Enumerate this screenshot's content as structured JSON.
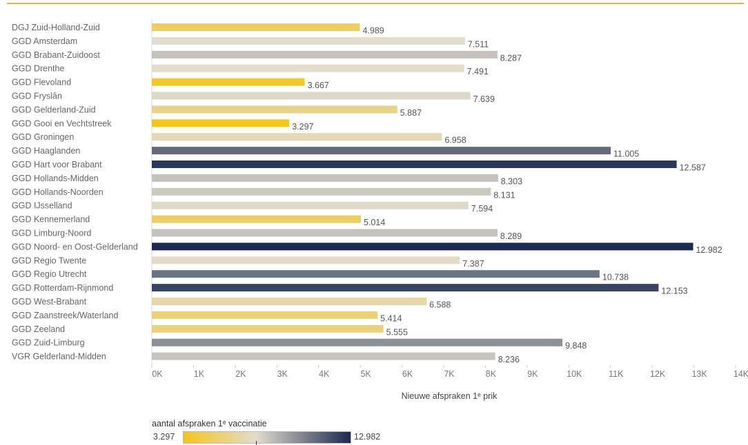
{
  "chart_data": {
    "type": "bar",
    "orientation": "horizontal",
    "categories": [
      "DGJ Zuid-Holland-Zuid",
      "GGD Amsterdam",
      "GGD Brabant-Zuidoost",
      "GGD Drenthe",
      "GGD Flevoland",
      "GGD Fryslân",
      "GGD Gelderland-Zuid",
      "GGD Gooi en Vechtstreek",
      "GGD Groningen",
      "GGD Haaglanden",
      "GGD Hart voor Brabant",
      "GGD Hollands-Midden",
      "GGD Hollands-Noorden",
      "GGD IJsselland",
      "GGD Kennemerland",
      "GGD Limburg-Noord",
      "GGD Noord- en Oost-Gelderland",
      "GGD Regio Twente",
      "GGD Regio Utrecht",
      "GGD Rotterdam-Rijnmond",
      "GGD West-Brabant",
      "GGD Zaanstreek/Waterland",
      "GGD Zeeland",
      "GGD Zuid-Limburg",
      "VGR Gelderland-Midden"
    ],
    "values": [
      4989,
      7511,
      8287,
      7491,
      3667,
      7639,
      5887,
      3297,
      6958,
      11005,
      12587,
      8303,
      8131,
      7594,
      5014,
      8289,
      12982,
      7387,
      10738,
      12153,
      6588,
      5414,
      5555,
      9848,
      8236
    ],
    "value_labels": [
      "4.989",
      "7.511",
      "8.287",
      "7.491",
      "3.667",
      "7.639",
      "5.887",
      "3.297",
      "6.958",
      "11.005",
      "12.587",
      "8.303",
      "8.131",
      "7.594",
      "5.014",
      "8.289",
      "12.982",
      "7.387",
      "10.738",
      "12.153",
      "6.588",
      "5.414",
      "5.555",
      "9.848",
      "8.236"
    ],
    "xlabel": "Nieuwe afspraken 1ᵉ prik",
    "ylabel": "",
    "xlim": [
      0,
      14000
    ],
    "x_ticks": [
      "0K",
      "1K",
      "2K",
      "3K",
      "4K",
      "5K",
      "6K",
      "7K",
      "8K",
      "9K",
      "10K",
      "11K",
      "12K",
      "13K",
      "14K"
    ],
    "grid": false,
    "color_scale": {
      "title": "aantal afspraken 1ᵉ vaccinatie",
      "min_label": "3.297",
      "max_label": "12.982",
      "min": 3297,
      "max": 12982,
      "center": 7500,
      "colors": [
        "#f5c518",
        "#e2dccd",
        "#1b2a4f"
      ]
    },
    "legend_placement": "bottom-left"
  }
}
